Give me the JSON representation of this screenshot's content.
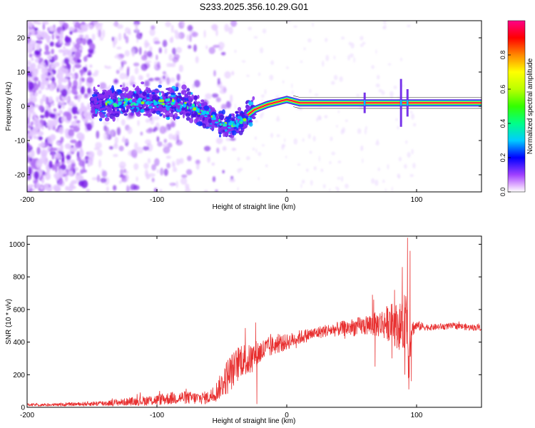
{
  "title": "S233.2025.356.10.29.G01",
  "chart_data": [
    {
      "type": "heatmap",
      "xlabel": "Height of straight line (km)",
      "ylabel": "Frequency (Hz)",
      "xlim": [
        -200,
        150
      ],
      "ylim": [
        -25,
        25
      ],
      "xticks": [
        -200,
        -100,
        0,
        100
      ],
      "yticks": [
        -20,
        -10,
        0,
        10,
        20
      ],
      "colorbar": {
        "label": "Normalized spectral amplitude",
        "range": [
          0,
          1
        ],
        "ticks": [
          "0.0",
          "0.2",
          "0.4",
          "0.6",
          "0.8"
        ],
        "tick_values": [
          0,
          0.2,
          0.4,
          0.6,
          0.8
        ]
      },
      "ridge": {
        "height_km": [
          -150,
          -130,
          -110,
          -90,
          -75,
          -60,
          -50,
          -45,
          -35,
          -25,
          -15,
          -5,
          0,
          10,
          30,
          60,
          85,
          90,
          100,
          150
        ],
        "frequency_hz": [
          0.5,
          1,
          1.5,
          1,
          0.5,
          -3,
          -5,
          -6,
          -4,
          -1,
          0.5,
          1.5,
          2,
          1,
          1,
          1,
          1,
          1,
          1,
          1
        ]
      }
    },
    {
      "type": "line",
      "xlabel": "Height of straight line (km)",
      "ylabel": "SNR (10 * v/v)",
      "xlim": [
        -200,
        150
      ],
      "ylim": [
        0,
        1050
      ],
      "xticks": [
        -200,
        -100,
        0,
        100
      ],
      "yticks": [
        0,
        200,
        400,
        600,
        800,
        1000
      ],
      "series": [
        {
          "name": "SNR",
          "color": "#e83030",
          "x": [
            -200,
            -180,
            -160,
            -140,
            -120,
            -100,
            -90,
            -80,
            -70,
            -60,
            -55,
            -50,
            -45,
            -40,
            -35,
            -30,
            -25,
            -20,
            -15,
            -10,
            -5,
            0,
            10,
            20,
            30,
            40,
            50,
            60,
            70,
            80,
            85,
            90,
            92,
            94,
            96,
            100,
            110,
            120,
            130,
            140,
            150
          ],
          "values": [
            15,
            15,
            20,
            25,
            35,
            45,
            55,
            60,
            55,
            60,
            90,
            140,
            200,
            240,
            300,
            280,
            320,
            340,
            360,
            380,
            390,
            400,
            430,
            450,
            470,
            480,
            490,
            500,
            510,
            520,
            500,
            490,
            600,
            300,
            480,
            500,
            490,
            495,
            500,
            490,
            490
          ],
          "noise": [
            8,
            8,
            12,
            18,
            25,
            35,
            40,
            40,
            40,
            40,
            60,
            80,
            120,
            110,
            110,
            100,
            90,
            80,
            70,
            60,
            55,
            50,
            45,
            40,
            40,
            45,
            55,
            60,
            80,
            120,
            140,
            160,
            200,
            180,
            60,
            30,
            20,
            20,
            20,
            20,
            20
          ]
        }
      ],
      "peaks": [
        {
          "x": -24,
          "y": 520
        },
        {
          "x": -23,
          "y": 20
        },
        {
          "x": 66,
          "y": 690
        },
        {
          "x": 68,
          "y": 250
        },
        {
          "x": 67,
          "y": 660
        },
        {
          "x": 83,
          "y": 720
        },
        {
          "x": 81,
          "y": 300
        },
        {
          "x": 93,
          "y": 1040
        },
        {
          "x": 94,
          "y": 110
        },
        {
          "x": 95,
          "y": 960
        },
        {
          "x": 96,
          "y": 160
        },
        {
          "x": 89,
          "y": 860
        },
        {
          "x": 91,
          "y": 200
        }
      ]
    }
  ]
}
